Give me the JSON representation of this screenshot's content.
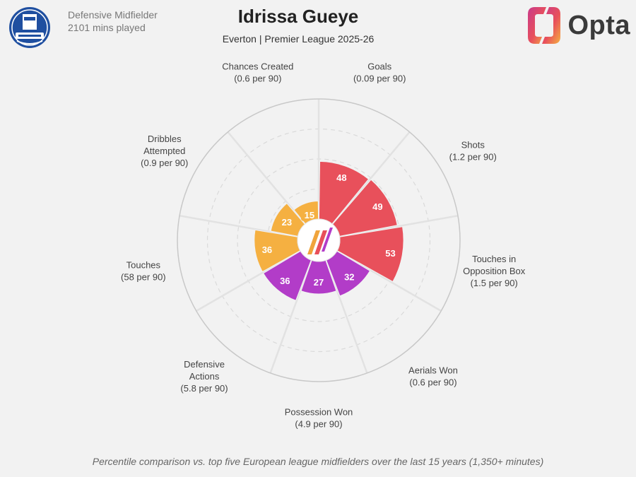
{
  "header": {
    "club_crest": "everton-crest-icon",
    "position": "Defensive Midfielder",
    "minutes": "2101 mins played",
    "title": "Idrissa Gueye",
    "subtitle": "Everton | Premier League 2025-26",
    "brand": "Opta",
    "brand_logo": "opta-logo-icon"
  },
  "footnote": "Percentile comparison vs. top five European league midfielders over the last 15 years (1,350+ minutes)",
  "colors": {
    "attacking": "#e8505b",
    "possession": "#f5b041",
    "defending": "#b23cc8",
    "background": "#f2f2f2",
    "grid": "#e2e2e2"
  },
  "chart_data": {
    "type": "pie",
    "subtype": "polar-area-radar",
    "title": "Idrissa Gueye",
    "subtitle": "Everton | Premier League 2025-26",
    "rlim": [
      0,
      100
    ],
    "categories": [
      {
        "name": "Goals",
        "rate": "(0.09 per 90)",
        "value": 48,
        "group": "attacking"
      },
      {
        "name": "Shots",
        "rate": "(1.2 per 90)",
        "value": 49,
        "group": "attacking"
      },
      {
        "name": "Touches in Opposition Box",
        "rate": "(1.5 per 90)",
        "value": 53,
        "group": "attacking"
      },
      {
        "name": "Aerials Won",
        "rate": "(0.6 per 90)",
        "value": 32,
        "group": "defending"
      },
      {
        "name": "Possession Won",
        "rate": "(4.9 per 90)",
        "value": 27,
        "group": "defending"
      },
      {
        "name": "Defensive Actions",
        "rate": "(5.8 per 90)",
        "value": 36,
        "group": "defending"
      },
      {
        "name": "Touches",
        "rate": "(58 per 90)",
        "value": 36,
        "group": "possession"
      },
      {
        "name": "Dribbles Attempted",
        "rate": "(0.9 per 90)",
        "value": 23,
        "group": "possession"
      },
      {
        "name": "Chances Created",
        "rate": "(0.6 per 90)",
        "value": 15,
        "group": "possession"
      }
    ]
  }
}
